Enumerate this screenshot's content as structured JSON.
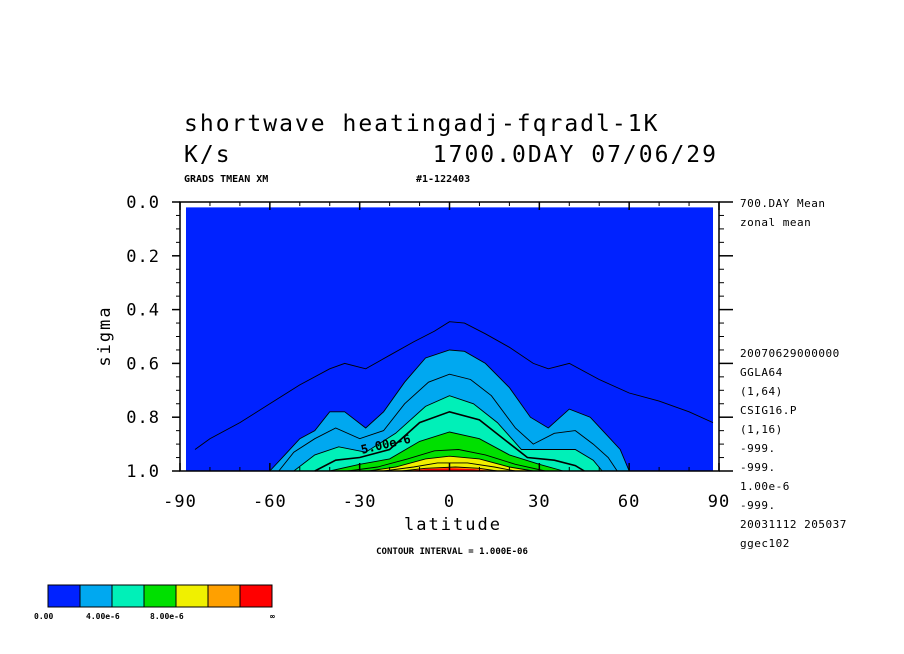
{
  "header": {
    "title_line1": "shortwave heatingadj-fqradl-1K",
    "title_line2_left": "K/s",
    "title_line2_right": "1700.0DAY 07/06/29",
    "sub_left": "GRADS TMEAN XM",
    "sub_right": "#1-122403"
  },
  "side_info": {
    "top": [
      "700.DAY Mean",
      "zonal mean"
    ],
    "bottom": [
      "20070629000000",
      "GGLA64",
      "(1,64)",
      "CSIG16.P",
      "(1,16)",
      "-999.",
      "-999.",
      "1.00e-6",
      "-999.",
      "20031112 205037",
      "ggec102"
    ]
  },
  "footer": {
    "contour_interval": "CONTOUR INTERVAL = 1.000E-06"
  },
  "colorbar": {
    "colors": [
      "#0022ff",
      "#00a8f0",
      "#00f0b8",
      "#00e000",
      "#f0f000",
      "#ffa000",
      "#ff0000"
    ],
    "labels": [
      "0.00",
      "4.00e-6",
      "8.00e-6",
      "∞"
    ]
  },
  "chart_data": {
    "type": "contour",
    "xlabel": "latitude",
    "ylabel": "sigma",
    "xlim": [
      -90,
      90
    ],
    "ylim": [
      1.0,
      0.0
    ],
    "x_ticks": [
      -90,
      -60,
      -30,
      0,
      30,
      60,
      90
    ],
    "x_tick_labels": [
      "-90",
      "-60",
      "-30",
      "0",
      "30",
      "60",
      "90"
    ],
    "y_ticks": [
      0.0,
      0.2,
      0.4,
      0.6,
      0.8,
      1.0
    ],
    "y_tick_labels": [
      "0.0",
      "0.2",
      "0.4",
      "0.6",
      "0.8",
      "1.0"
    ],
    "contour_interval": 1e-06,
    "contour_label": "5.00e-6",
    "levels": [
      {
        "value": 1e-06,
        "boundary": [
          [
            -85,
            0.92
          ],
          [
            -80,
            0.88
          ],
          [
            -70,
            0.82
          ],
          [
            -60,
            0.75
          ],
          [
            -50,
            0.68
          ],
          [
            -40,
            0.62
          ],
          [
            -35,
            0.6
          ],
          [
            -28,
            0.62
          ],
          [
            -20,
            0.57
          ],
          [
            -12,
            0.52
          ],
          [
            -5,
            0.48
          ],
          [
            0,
            0.445
          ],
          [
            5,
            0.45
          ],
          [
            12,
            0.49
          ],
          [
            20,
            0.54
          ],
          [
            28,
            0.6
          ],
          [
            33,
            0.62
          ],
          [
            40,
            0.6
          ],
          [
            50,
            0.66
          ],
          [
            60,
            0.71
          ],
          [
            70,
            0.74
          ],
          [
            80,
            0.78
          ],
          [
            88,
            0.82
          ]
        ]
      },
      {
        "value": 2e-06,
        "boundary": [
          [
            -60,
            1.0
          ],
          [
            -55,
            0.94
          ],
          [
            -50,
            0.88
          ],
          [
            -45,
            0.85
          ],
          [
            -40,
            0.78
          ],
          [
            -35,
            0.78
          ],
          [
            -28,
            0.84
          ],
          [
            -22,
            0.78
          ],
          [
            -15,
            0.67
          ],
          [
            -8,
            0.58
          ],
          [
            0,
            0.55
          ],
          [
            5,
            0.555
          ],
          [
            12,
            0.6
          ],
          [
            20,
            0.69
          ],
          [
            27,
            0.8
          ],
          [
            33,
            0.84
          ],
          [
            40,
            0.77
          ],
          [
            47,
            0.8
          ],
          [
            52,
            0.86
          ],
          [
            57,
            0.92
          ],
          [
            60,
            1.0
          ]
        ]
      },
      {
        "value": 3e-06,
        "boundary": [
          [
            -57,
            1.0
          ],
          [
            -52,
            0.93
          ],
          [
            -45,
            0.88
          ],
          [
            -38,
            0.84
          ],
          [
            -30,
            0.88
          ],
          [
            -22,
            0.85
          ],
          [
            -15,
            0.75
          ],
          [
            -7,
            0.67
          ],
          [
            0,
            0.64
          ],
          [
            7,
            0.66
          ],
          [
            14,
            0.72
          ],
          [
            22,
            0.84
          ],
          [
            28,
            0.9
          ],
          [
            35,
            0.86
          ],
          [
            42,
            0.85
          ],
          [
            48,
            0.9
          ],
          [
            53,
            0.95
          ],
          [
            56,
            1.0
          ]
        ]
      },
      {
        "value": 4e-06,
        "boundary": [
          [
            -52,
            1.0
          ],
          [
            -45,
            0.94
          ],
          [
            -37,
            0.91
          ],
          [
            -28,
            0.93
          ],
          [
            -18,
            0.86
          ],
          [
            -8,
            0.76
          ],
          [
            0,
            0.72
          ],
          [
            8,
            0.75
          ],
          [
            16,
            0.82
          ],
          [
            24,
            0.92
          ],
          [
            33,
            0.92
          ],
          [
            42,
            0.92
          ],
          [
            48,
            0.96
          ],
          [
            51,
            1.0
          ]
        ]
      },
      {
        "value": 5e-06,
        "boundary": [
          [
            -45,
            1.0
          ],
          [
            -38,
            0.96
          ],
          [
            -30,
            0.95
          ],
          [
            -20,
            0.92
          ],
          [
            -10,
            0.82
          ],
          [
            0,
            0.78
          ],
          [
            10,
            0.81
          ],
          [
            18,
            0.88
          ],
          [
            26,
            0.95
          ],
          [
            35,
            0.96
          ],
          [
            42,
            0.98
          ],
          [
            45,
            1.0
          ]
        ]
      },
      {
        "value": 6e-06,
        "boundary": [
          [
            -40,
            1.0
          ],
          [
            -30,
            0.975
          ],
          [
            -20,
            0.955
          ],
          [
            -10,
            0.89
          ],
          [
            0,
            0.855
          ],
          [
            10,
            0.88
          ],
          [
            20,
            0.94
          ],
          [
            30,
            0.975
          ],
          [
            38,
            1.0
          ]
        ]
      },
      {
        "value": 7e-06,
        "boundary": [
          [
            -34,
            1.0
          ],
          [
            -24,
            0.985
          ],
          [
            -14,
            0.955
          ],
          [
            -5,
            0.925
          ],
          [
            3,
            0.92
          ],
          [
            12,
            0.94
          ],
          [
            22,
            0.975
          ],
          [
            32,
            1.0
          ]
        ]
      },
      {
        "value": 8e-06,
        "boundary": [
          [
            -27,
            1.0
          ],
          [
            -18,
            0.985
          ],
          [
            -8,
            0.955
          ],
          [
            0,
            0.945
          ],
          [
            10,
            0.955
          ],
          [
            20,
            0.985
          ],
          [
            28,
            1.0
          ]
        ]
      },
      {
        "value": 9e-06,
        "boundary": [
          [
            -22,
            1.0
          ],
          [
            -12,
            0.985
          ],
          [
            -4,
            0.97
          ],
          [
            6,
            0.97
          ],
          [
            15,
            0.985
          ],
          [
            22,
            1.0
          ]
        ]
      },
      {
        "value": 1e-05,
        "boundary": [
          [
            -16,
            1.0
          ],
          [
            -8,
            0.99
          ],
          [
            2,
            0.985
          ],
          [
            10,
            0.99
          ],
          [
            16,
            1.0
          ]
        ]
      }
    ],
    "fill_bands": [
      {
        "from": 0,
        "to": 2e-06,
        "color": "#0022ff"
      },
      {
        "from": 2e-06,
        "to": 4e-06,
        "color": "#00a8f0"
      },
      {
        "from": 4e-06,
        "to": 6e-06,
        "color": "#00f0b8"
      },
      {
        "from": 6e-06,
        "to": 8e-06,
        "color": "#00e000"
      },
      {
        "from": 8e-06,
        "to": 1e-05,
        "color": "#f0f000"
      },
      {
        "from": 1e-05,
        "to": 1.2e-05,
        "color": "#ffa000"
      },
      {
        "from": 1.2e-05,
        "to": null,
        "color": "#ff0000"
      }
    ]
  }
}
